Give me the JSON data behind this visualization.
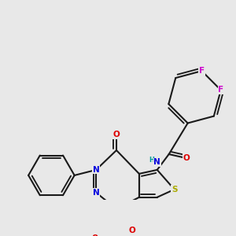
{
  "bg_color": "#e8e8e8",
  "bond_color": "#1a1a1a",
  "bond_lw": 1.5,
  "dbo": 0.012,
  "atom_colors": {
    "S": "#aaaa00",
    "N": "#0000dd",
    "O": "#dd0000",
    "F": "#cc00cc",
    "H": "#009999",
    "C": "#1a1a1a"
  },
  "fs": 7.5
}
